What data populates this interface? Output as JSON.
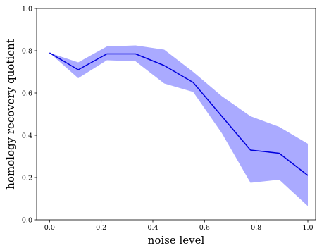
{
  "chart_data": {
    "type": "line",
    "title": "",
    "xlabel": "noise level",
    "ylabel": "homology recovery quotient",
    "xlim": [
      -0.05,
      1.03
    ],
    "ylim": [
      0.0,
      1.0
    ],
    "grid": false,
    "legend": "none",
    "x_ticks": [
      0.0,
      0.2,
      0.4,
      0.6,
      0.8,
      1.0
    ],
    "x_tick_labels": [
      "0.0",
      "0.2",
      "0.4",
      "0.6",
      "0.8",
      "1.0"
    ],
    "y_ticks": [
      0.0,
      0.2,
      0.4,
      0.6,
      0.8,
      1.0
    ],
    "y_tick_labels": [
      "0.0",
      "0.2",
      "0.4",
      "0.6",
      "0.8",
      "1.0"
    ],
    "series": [
      {
        "x": [
          0.0,
          0.111,
          0.222,
          0.333,
          0.444,
          0.556,
          0.667,
          0.778,
          0.889,
          1.0
        ],
        "y": [
          0.79,
          0.71,
          0.785,
          0.785,
          0.73,
          0.65,
          0.49,
          0.33,
          0.315,
          0.21
        ],
        "lower": [
          0.79,
          0.67,
          0.755,
          0.75,
          0.645,
          0.605,
          0.41,
          0.175,
          0.19,
          0.065
        ],
        "upper": [
          0.79,
          0.745,
          0.82,
          0.825,
          0.805,
          0.7,
          0.585,
          0.49,
          0.44,
          0.36
        ],
        "color": "#0000dd",
        "band_color": "#aaaaff"
      }
    ]
  }
}
